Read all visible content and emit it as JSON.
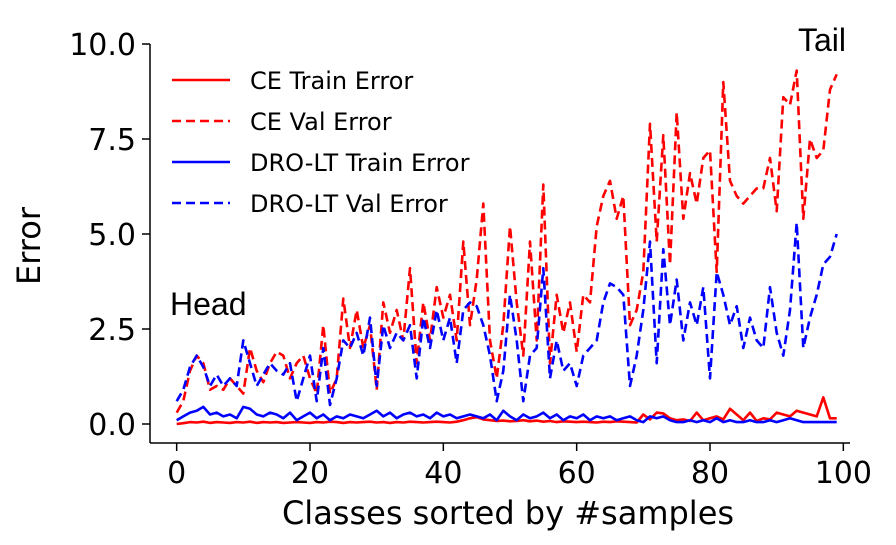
{
  "chart_data": {
    "type": "line",
    "xlabel": "Classes sorted by #samples",
    "ylabel": "Error",
    "xlim": [
      -4,
      101
    ],
    "ylim": [
      -0.5,
      10.0
    ],
    "xticks": [
      0,
      20,
      40,
      60,
      80,
      100
    ],
    "yticks": [
      0.0,
      2.5,
      5.0,
      7.5,
      10.0
    ],
    "xtick_labels": [
      "0",
      "20",
      "40",
      "60",
      "80",
      "100"
    ],
    "ytick_labels": [
      "0.0",
      "2.5",
      "5.0",
      "7.5",
      "10.0"
    ],
    "grid": false,
    "legend_position": "top-left",
    "annotations": [
      {
        "text": "Head",
        "x": 0,
        "y": 3.2
      },
      {
        "text": "Tail",
        "x": 95,
        "y": 9.9
      }
    ],
    "x": [
      0,
      1,
      2,
      3,
      4,
      5,
      6,
      7,
      8,
      9,
      10,
      11,
      12,
      13,
      14,
      15,
      16,
      17,
      18,
      19,
      20,
      21,
      22,
      23,
      24,
      25,
      26,
      27,
      28,
      29,
      30,
      31,
      32,
      33,
      34,
      35,
      36,
      37,
      38,
      39,
      40,
      41,
      42,
      43,
      44,
      45,
      46,
      47,
      48,
      49,
      50,
      51,
      52,
      53,
      54,
      55,
      56,
      57,
      58,
      59,
      60,
      61,
      62,
      63,
      64,
      65,
      66,
      67,
      68,
      69,
      70,
      71,
      72,
      73,
      74,
      75,
      76,
      77,
      78,
      79,
      80,
      81,
      82,
      83,
      84,
      85,
      86,
      87,
      88,
      89,
      90,
      91,
      92,
      93,
      94,
      95,
      96,
      97,
      98,
      99
    ],
    "series": [
      {
        "name": "CE Train Error",
        "color": "#ff0000",
        "dash": "solid",
        "values": [
          0.0,
          0.02,
          0.05,
          0.04,
          0.06,
          0.03,
          0.05,
          0.04,
          0.03,
          0.05,
          0.04,
          0.06,
          0.03,
          0.05,
          0.04,
          0.05,
          0.03,
          0.04,
          0.05,
          0.04,
          0.03,
          0.05,
          0.04,
          0.06,
          0.05,
          0.03,
          0.05,
          0.04,
          0.05,
          0.06,
          0.04,
          0.05,
          0.03,
          0.05,
          0.04,
          0.06,
          0.05,
          0.04,
          0.05,
          0.06,
          0.05,
          0.04,
          0.06,
          0.1,
          0.15,
          0.18,
          0.12,
          0.1,
          0.08,
          0.09,
          0.07,
          0.08,
          0.1,
          0.07,
          0.09,
          0.06,
          0.08,
          0.05,
          0.07,
          0.06,
          0.05,
          0.06,
          0.05,
          0.04,
          0.06,
          0.05,
          0.07,
          0.06,
          0.05,
          0.04,
          0.25,
          0.12,
          0.3,
          0.28,
          0.15,
          0.1,
          0.12,
          0.08,
          0.3,
          0.1,
          0.15,
          0.2,
          0.12,
          0.4,
          0.25,
          0.1,
          0.3,
          0.08,
          0.15,
          0.12,
          0.3,
          0.25,
          0.2,
          0.35,
          0.3,
          0.25,
          0.2,
          0.7,
          0.15,
          0.15
        ]
      },
      {
        "name": "CE Val Error",
        "color": "#ff0000",
        "dash": "dashed",
        "values": [
          0.3,
          0.6,
          1.4,
          1.8,
          1.6,
          0.9,
          1.0,
          0.9,
          1.2,
          1.0,
          0.8,
          2.0,
          1.4,
          1.1,
          1.6,
          1.9,
          1.8,
          1.2,
          1.6,
          1.8,
          1.2,
          0.8,
          2.6,
          0.8,
          1.2,
          3.3,
          2.0,
          3.0,
          2.0,
          2.6,
          0.9,
          3.2,
          2.4,
          3.0,
          2.2,
          4.1,
          1.6,
          3.2,
          2.2,
          3.6,
          2.8,
          3.4,
          2.2,
          4.8,
          2.6,
          3.8,
          5.8,
          2.2,
          1.2,
          2.6,
          5.2,
          3.2,
          1.8,
          4.8,
          2.2,
          6.3,
          1.6,
          3.4,
          2.4,
          3.2,
          1.9,
          3.4,
          3.2,
          5.2,
          6.0,
          6.4,
          5.4,
          6.0,
          2.6,
          3.0,
          4.0,
          7.9,
          4.8,
          7.6,
          4.2,
          8.2,
          5.4,
          6.6,
          5.8,
          7.0,
          7.2,
          4.0,
          9.0,
          6.4,
          6.0,
          5.8,
          6.0,
          6.2,
          6.2,
          7.0,
          5.6,
          8.6,
          8.4,
          9.3,
          5.4,
          7.5,
          7.0,
          7.2,
          8.8,
          9.2
        ]
      },
      {
        "name": "DRO-LT Train Error",
        "color": "#0000ff",
        "dash": "solid",
        "values": [
          0.1,
          0.2,
          0.3,
          0.35,
          0.45,
          0.25,
          0.3,
          0.2,
          0.25,
          0.15,
          0.45,
          0.4,
          0.25,
          0.2,
          0.3,
          0.25,
          0.15,
          0.3,
          0.1,
          0.2,
          0.3,
          0.15,
          0.25,
          0.1,
          0.2,
          0.15,
          0.25,
          0.2,
          0.15,
          0.25,
          0.35,
          0.2,
          0.3,
          0.15,
          0.25,
          0.3,
          0.2,
          0.25,
          0.15,
          0.3,
          0.2,
          0.25,
          0.15,
          0.2,
          0.25,
          0.2,
          0.15,
          0.25,
          0.1,
          0.35,
          0.2,
          0.1,
          0.25,
          0.15,
          0.2,
          0.3,
          0.15,
          0.25,
          0.1,
          0.2,
          0.15,
          0.25,
          0.1,
          0.2,
          0.15,
          0.2,
          0.1,
          0.15,
          0.2,
          0.1,
          0.05,
          0.2,
          0.15,
          0.2,
          0.1,
          0.05,
          0.05,
          0.1,
          0.05,
          0.1,
          0.05,
          0.15,
          0.05,
          0.1,
          0.05,
          0.05,
          0.1,
          0.05,
          0.05,
          0.1,
          0.05,
          0.1,
          0.15,
          0.1,
          0.05,
          0.05,
          0.05,
          0.05,
          0.05,
          0.05
        ]
      },
      {
        "name": "DRO-LT Val Error",
        "color": "#0000ff",
        "dash": "dashed",
        "values": [
          0.6,
          0.9,
          1.5,
          1.8,
          1.5,
          1.0,
          1.3,
          1.0,
          1.2,
          1.0,
          2.2,
          1.6,
          1.0,
          1.3,
          1.6,
          1.4,
          1.3,
          1.6,
          0.6,
          1.2,
          1.8,
          0.6,
          2.0,
          0.5,
          1.2,
          2.2,
          2.0,
          2.4,
          1.8,
          2.8,
          1.0,
          2.6,
          2.0,
          2.4,
          2.2,
          2.6,
          1.2,
          2.8,
          2.0,
          3.0,
          2.2,
          2.8,
          1.6,
          3.0,
          3.2,
          3.1,
          2.6,
          1.8,
          0.6,
          1.4,
          3.4,
          2.2,
          0.6,
          1.8,
          2.0,
          4.1,
          1.2,
          2.2,
          1.4,
          1.6,
          1.0,
          1.8,
          2.0,
          2.2,
          3.2,
          3.7,
          3.6,
          3.4,
          1.0,
          1.8,
          3.0,
          4.8,
          1.6,
          4.6,
          2.6,
          3.8,
          2.2,
          3.2,
          2.6,
          3.6,
          1.2,
          4.0,
          3.4,
          2.6,
          3.1,
          2.0,
          2.8,
          2.2,
          2.0,
          3.6,
          2.4,
          1.8,
          3.0,
          5.3,
          2.0,
          2.8,
          3.4,
          4.2,
          4.4,
          5.0
        ]
      }
    ]
  }
}
